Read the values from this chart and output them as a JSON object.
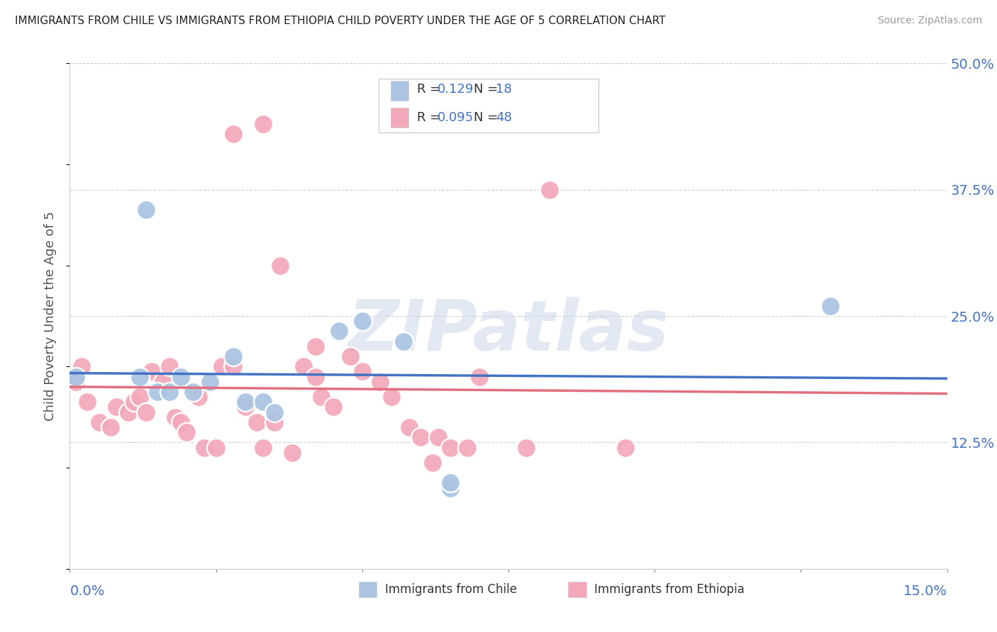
{
  "title": "IMMIGRANTS FROM CHILE VS IMMIGRANTS FROM ETHIOPIA CHILD POVERTY UNDER THE AGE OF 5 CORRELATION CHART",
  "source": "Source: ZipAtlas.com",
  "ylabel": "Child Poverty Under the Age of 5",
  "yticks": [
    0.0,
    0.125,
    0.25,
    0.375,
    0.5
  ],
  "ytick_labels": [
    "",
    "12.5%",
    "25.0%",
    "37.5%",
    "50.0%"
  ],
  "xlim": [
    0.0,
    0.15
  ],
  "ylim": [
    0.0,
    0.5
  ],
  "watermark": "ZIPatlas",
  "legend_chile_R": "0.129",
  "legend_chile_N": "18",
  "legend_ethiopia_R": "0.095",
  "legend_ethiopia_N": "48",
  "chile_color": "#aac4e2",
  "ethiopia_color": "#f2a8b8",
  "chile_line_color": "#4472c4",
  "ethiopia_line_color": "#e07080",
  "chile_scatter": [
    [
      0.001,
      0.19
    ],
    [
      0.012,
      0.19
    ],
    [
      0.015,
      0.175
    ],
    [
      0.017,
      0.175
    ],
    [
      0.019,
      0.19
    ],
    [
      0.021,
      0.175
    ],
    [
      0.024,
      0.185
    ],
    [
      0.028,
      0.21
    ],
    [
      0.03,
      0.165
    ],
    [
      0.033,
      0.165
    ],
    [
      0.035,
      0.155
    ],
    [
      0.013,
      0.355
    ],
    [
      0.046,
      0.235
    ],
    [
      0.05,
      0.245
    ],
    [
      0.057,
      0.225
    ],
    [
      0.065,
      0.08
    ],
    [
      0.065,
      0.085
    ],
    [
      0.13,
      0.26
    ]
  ],
  "ethiopia_scatter": [
    [
      0.001,
      0.185
    ],
    [
      0.002,
      0.2
    ],
    [
      0.003,
      0.165
    ],
    [
      0.005,
      0.145
    ],
    [
      0.007,
      0.14
    ],
    [
      0.008,
      0.16
    ],
    [
      0.01,
      0.155
    ],
    [
      0.011,
      0.165
    ],
    [
      0.012,
      0.17
    ],
    [
      0.013,
      0.155
    ],
    [
      0.014,
      0.195
    ],
    [
      0.016,
      0.185
    ],
    [
      0.017,
      0.2
    ],
    [
      0.018,
      0.15
    ],
    [
      0.019,
      0.145
    ],
    [
      0.02,
      0.135
    ],
    [
      0.022,
      0.17
    ],
    [
      0.023,
      0.12
    ],
    [
      0.025,
      0.12
    ],
    [
      0.026,
      0.2
    ],
    [
      0.028,
      0.2
    ],
    [
      0.03,
      0.16
    ],
    [
      0.032,
      0.145
    ],
    [
      0.033,
      0.12
    ],
    [
      0.035,
      0.145
    ],
    [
      0.028,
      0.43
    ],
    [
      0.033,
      0.44
    ],
    [
      0.038,
      0.115
    ],
    [
      0.04,
      0.2
    ],
    [
      0.042,
      0.19
    ],
    [
      0.043,
      0.17
    ],
    [
      0.045,
      0.16
    ],
    [
      0.036,
      0.3
    ],
    [
      0.05,
      0.195
    ],
    [
      0.053,
      0.185
    ],
    [
      0.055,
      0.17
    ],
    [
      0.058,
      0.14
    ],
    [
      0.06,
      0.13
    ],
    [
      0.042,
      0.22
    ],
    [
      0.048,
      0.21
    ],
    [
      0.062,
      0.105
    ],
    [
      0.063,
      0.13
    ],
    [
      0.065,
      0.12
    ],
    [
      0.068,
      0.12
    ],
    [
      0.082,
      0.375
    ],
    [
      0.078,
      0.12
    ],
    [
      0.095,
      0.12
    ],
    [
      0.07,
      0.19
    ]
  ],
  "title_fontsize": 11,
  "axis_label_color": "#4472c4",
  "value_color": "#4472c4",
  "label_color": "#333333",
  "grid_color": "#cccccc",
  "xtick_positions": [
    0.0,
    0.025,
    0.05,
    0.075,
    0.1,
    0.125,
    0.15
  ]
}
